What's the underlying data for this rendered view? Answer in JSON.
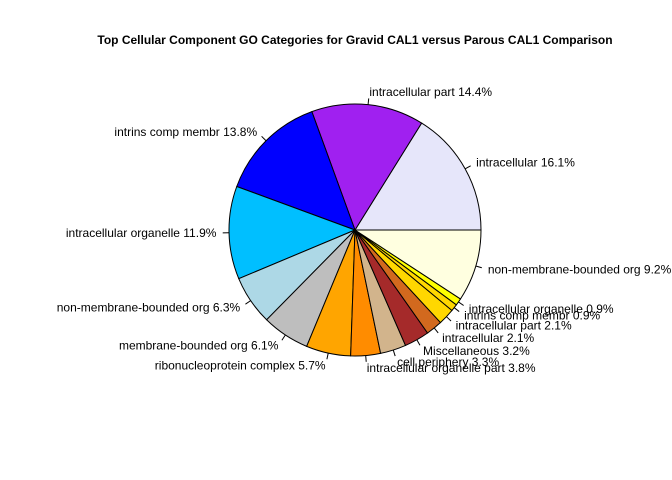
{
  "chart_data": {
    "type": "pie",
    "title": "Top Cellular Component GO Categories for Gravid CAL1 versus Parous CAL1 Comparison",
    "direction": "counterclockwise",
    "start_angle_deg": 0,
    "slices": [
      {
        "label": "intracellular 16.1%",
        "value": 16.1,
        "color": "#e6e6fa"
      },
      {
        "label": "intracellular part 14.4%",
        "value": 14.4,
        "color": "#a020f0"
      },
      {
        "label": "intrins comp membr 13.8%",
        "value": 13.8,
        "color": "#0000ff"
      },
      {
        "label": "intracellular organelle 11.9%",
        "value": 11.9,
        "color": "#00bfff"
      },
      {
        "label": "non-membrane-bounded org 6.3%",
        "value": 6.3,
        "color": "#add8e6"
      },
      {
        "label": "membrane-bounded org 6.1%",
        "value": 6.1,
        "color": "#bebebe"
      },
      {
        "label": "ribonucleoprotein complex 5.7%",
        "value": 5.7,
        "color": "#ffa500"
      },
      {
        "label": "intracellular organelle part 3.8%",
        "value": 3.8,
        "color": "#ff8c00"
      },
      {
        "label": "cell periphery 3.3%",
        "value": 3.3,
        "color": "#d2b48c"
      },
      {
        "label": "Miscellaneous 3.2%",
        "value": 3.2,
        "color": "#a52a2a"
      },
      {
        "label": "intracellular 2.1%",
        "value": 2.1,
        "color": "#d2691e"
      },
      {
        "label": "intracellular part 2.1%",
        "value": 2.1,
        "color": "#ffd700"
      },
      {
        "label": "intrins comp membr 0.9%",
        "value": 0.9,
        "color": "#ffd700"
      },
      {
        "label": "intracellular organelle 0.9%",
        "value": 0.9,
        "color": "#ffff00"
      },
      {
        "label": "non-membrane-bounded org 9.2%",
        "value": 9.2,
        "color": "#ffffe0"
      }
    ]
  }
}
